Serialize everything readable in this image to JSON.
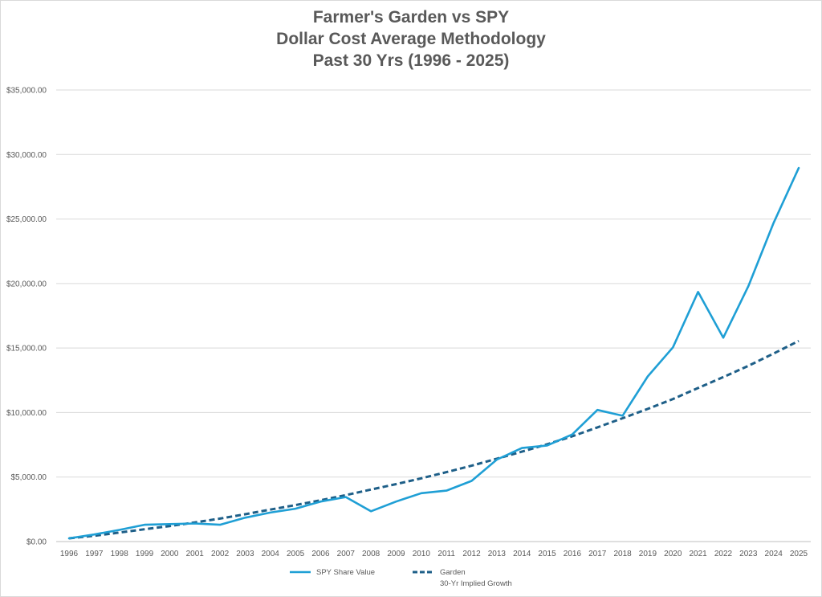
{
  "chart_data": {
    "type": "line",
    "title_lines": [
      "Farmer's Garden vs SPY",
      "Dollar Cost Average Methodology",
      "Past 30 Yrs (1996 -  2025)"
    ],
    "x": [
      "1996",
      "1997",
      "1998",
      "1999",
      "2000",
      "2001",
      "2002",
      "2003",
      "2004",
      "2005",
      "2006",
      "2007",
      "2008",
      "2009",
      "2010",
      "2011",
      "2012",
      "2013",
      "2014",
      "2015",
      "2016",
      "2017",
      "2018",
      "2019",
      "2020",
      "2021",
      "2022",
      "2023",
      "2024",
      "2025"
    ],
    "y_ticks": [
      "$0.00",
      "$5,000.00",
      "$10,000.00",
      "$15,000.00",
      "$20,000.00",
      "$25,000.00",
      "$30,000.00",
      "$35,000.00"
    ],
    "ylim": [
      0,
      35000
    ],
    "grid": true,
    "legend_position": "bottom",
    "series": [
      {
        "name": "SPY Share Value",
        "color": "#1f9fd5",
        "style": "solid",
        "values": [
          250,
          550,
          900,
          1300,
          1350,
          1400,
          1300,
          1850,
          2250,
          2550,
          3100,
          3450,
          2350,
          3100,
          3750,
          3950,
          4700,
          6350,
          7250,
          7450,
          8300,
          10200,
          9750,
          12800,
          15050,
          19350,
          15800,
          19800,
          24700,
          28950
        ]
      },
      {
        "name": "Garden",
        "name_line2": "30-Yr Implied Growth",
        "color": "#1e5f88",
        "style": "dashed",
        "values": [
          250,
          450,
          700,
          950,
          1200,
          1480,
          1780,
          2120,
          2480,
          2830,
          3200,
          3600,
          4030,
          4450,
          4900,
          5380,
          5880,
          6420,
          6970,
          7540,
          8160,
          8850,
          9560,
          10280,
          11050,
          11900,
          12750,
          13620,
          14570,
          15550
        ]
      }
    ]
  }
}
